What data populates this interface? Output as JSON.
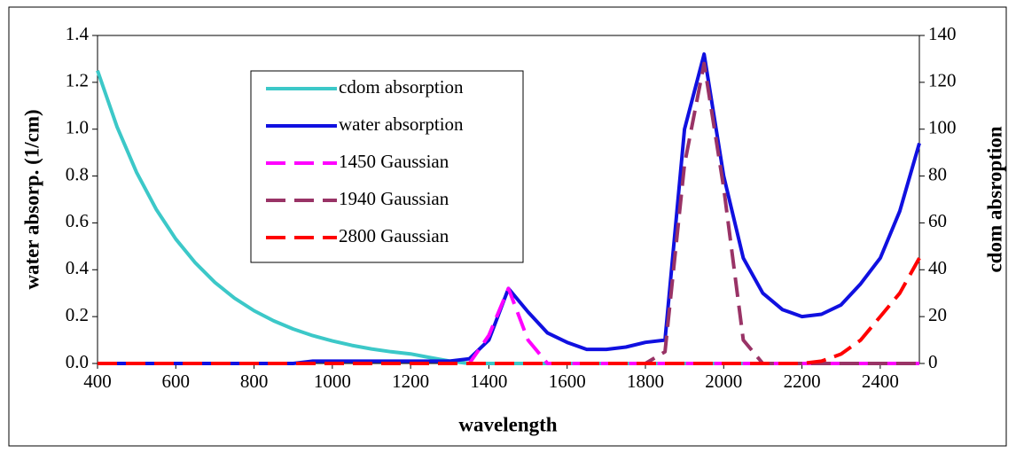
{
  "chart_data": {
    "type": "line",
    "x": [
      400,
      450,
      500,
      550,
      600,
      650,
      700,
      750,
      800,
      850,
      900,
      950,
      1000,
      1050,
      1100,
      1150,
      1200,
      1250,
      1300,
      1350,
      1400,
      1450,
      1500,
      1550,
      1600,
      1650,
      1700,
      1750,
      1800,
      1850,
      1900,
      1950,
      2000,
      2050,
      2100,
      2150,
      2200,
      2250,
      2300,
      2350,
      2400,
      2450,
      2500
    ],
    "xlabel": "wavelength",
    "ylabel": "water absorp. (1/cm)",
    "y2label": "cdom absroption",
    "xlim": [
      400,
      2500
    ],
    "xticks": [
      400,
      600,
      800,
      1000,
      1200,
      1400,
      1600,
      1800,
      2000,
      2200,
      2400
    ],
    "ylim": [
      0,
      1.4
    ],
    "yticks": [
      {
        "value": 0,
        "label": "0.0"
      },
      0.2,
      0.4,
      0.6,
      0.8,
      {
        "value": 1,
        "label": "1.0"
      },
      1.2,
      1.4
    ],
    "y2lim": [
      0,
      140
    ],
    "y2ticks": [
      0,
      20,
      40,
      60,
      80,
      100,
      120,
      140
    ],
    "series": [
      {
        "name": "cdom absorption",
        "color": "#3cc8c8",
        "axis": "y2",
        "dash": false,
        "values": [
          125,
          100.9,
          81.5,
          65.8,
          53.1,
          42.9,
          34.6,
          27.9,
          22.5,
          18.2,
          14.7,
          11.9,
          9.6,
          7.7,
          6.2,
          5.0,
          4.1,
          2.5,
          1.0,
          0,
          0,
          0,
          0,
          0,
          0,
          0,
          0,
          0,
          0,
          0,
          0,
          0,
          0,
          0,
          0,
          0,
          0,
          0,
          0,
          0,
          0,
          0,
          0
        ]
      },
      {
        "name": "water absorption",
        "color": "#1010e0",
        "dash": false,
        "values": [
          0,
          0,
          0,
          0,
          0,
          0,
          0,
          0,
          0,
          0,
          0,
          0.01,
          0.01,
          0.01,
          0.01,
          0.01,
          0.01,
          0.01,
          0.01,
          0.02,
          0.1,
          0.32,
          0.22,
          0.13,
          0.09,
          0.06,
          0.06,
          0.07,
          0.09,
          0.1,
          1.0,
          1.32,
          0.8,
          0.45,
          0.3,
          0.23,
          0.2,
          0.21,
          0.25,
          0.34,
          0.45,
          0.65,
          0.94
        ]
      },
      {
        "name": "1450 Gaussian",
        "color": "#ff00ff",
        "dash": true,
        "values": [
          0,
          0,
          0,
          0,
          0,
          0,
          0,
          0,
          0,
          0,
          0,
          0,
          0,
          0,
          0,
          0,
          0,
          0,
          0,
          0,
          0.12,
          0.32,
          0.1,
          0,
          0,
          0,
          0,
          0,
          0,
          0,
          0,
          0,
          0,
          0,
          0,
          0,
          0,
          0,
          0,
          0,
          0,
          0,
          0
        ]
      },
      {
        "name": "1940 Gaussian",
        "color": "#993366",
        "dash": true,
        "values": [
          0,
          0,
          0,
          0,
          0,
          0,
          0,
          0,
          0,
          0,
          0,
          0,
          0,
          0,
          0,
          0,
          0,
          0,
          0,
          0,
          0,
          0,
          0,
          0,
          0,
          0,
          0,
          0,
          0,
          0.05,
          0.85,
          1.28,
          0.75,
          0.1,
          0,
          0,
          0,
          0,
          0,
          0,
          0,
          0,
          0
        ]
      },
      {
        "name": "2800 Gaussian",
        "color": "#ff0000",
        "dash": true,
        "values": [
          0,
          0,
          0,
          0,
          0,
          0,
          0,
          0,
          0,
          0,
          0,
          0,
          0,
          0,
          0,
          0,
          0,
          0,
          0,
          0,
          0,
          0,
          0,
          0,
          0,
          0,
          0,
          0,
          0,
          0,
          0,
          0,
          0,
          0,
          0,
          0,
          0,
          0.01,
          0.04,
          0.1,
          0.2,
          0.3,
          0.45
        ]
      }
    ]
  }
}
